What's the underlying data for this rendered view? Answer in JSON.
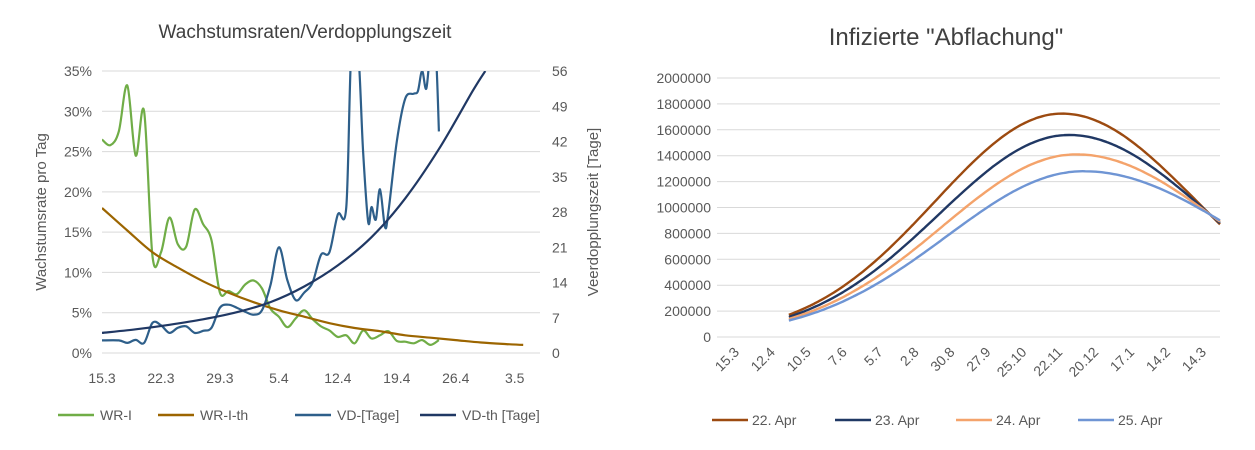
{
  "chart_data": [
    {
      "type": "line",
      "title": "Wachstumsraten/Verdopplungszeit",
      "ylabel": "Wachstumsrate pro Tag",
      "y2label": "Veerdopplungszeit [Tage]",
      "x_ticks": [
        "15.3",
        "22.3",
        "29.3",
        "5.4",
        "12.4",
        "19.4",
        "26.4",
        "3.5"
      ],
      "ylim": [
        0,
        0.35
      ],
      "y_ticks": [
        "0%",
        "5%",
        "10%",
        "15%",
        "20%",
        "25%",
        "30%",
        "35%"
      ],
      "y2lim": [
        0,
        56
      ],
      "y2_ticks": [
        "0",
        "7",
        "14",
        "21",
        "28",
        "35",
        "42",
        "49",
        "56"
      ],
      "grid": true,
      "legend_position": "bottom",
      "series": [
        {
          "name": "WR-I",
          "axis": "left",
          "color": "#70ad47",
          "points": [
            [
              0,
              0.265
            ],
            [
              1,
              0.258
            ],
            [
              2,
              0.275
            ],
            [
              3,
              0.332
            ],
            [
              4,
              0.245
            ],
            [
              5,
              0.3
            ],
            [
              6,
              0.12
            ],
            [
              7,
              0.125
            ],
            [
              8,
              0.168
            ],
            [
              9,
              0.135
            ],
            [
              10,
              0.132
            ],
            [
              11,
              0.178
            ],
            [
              12,
              0.16
            ],
            [
              13,
              0.14
            ],
            [
              14,
              0.075
            ],
            [
              15,
              0.077
            ],
            [
              16,
              0.073
            ],
            [
              17,
              0.085
            ],
            [
              18,
              0.09
            ],
            [
              19,
              0.08
            ],
            [
              20,
              0.055
            ],
            [
              21,
              0.045
            ],
            [
              22,
              0.032
            ],
            [
              23,
              0.043
            ],
            [
              24,
              0.053
            ],
            [
              25,
              0.042
            ],
            [
              26,
              0.033
            ],
            [
              27,
              0.028
            ],
            [
              28,
              0.02
            ],
            [
              29,
              0.022
            ],
            [
              30,
              0.012
            ],
            [
              31,
              0.028
            ],
            [
              32,
              0.018
            ],
            [
              33,
              0.022
            ],
            [
              34,
              0.027
            ],
            [
              35,
              0.015
            ],
            [
              36,
              0.014
            ],
            [
              37,
              0.012
            ],
            [
              38,
              0.016
            ],
            [
              39,
              0.01
            ],
            [
              40,
              0.016
            ]
          ]
        },
        {
          "name": "WR-I-th",
          "axis": "left",
          "color": "#9c6500",
          "points": [
            [
              0,
              0.18
            ],
            [
              3,
              0.152
            ],
            [
              6,
              0.125
            ],
            [
              9,
              0.106
            ],
            [
              12,
              0.089
            ],
            [
              15,
              0.075
            ],
            [
              18,
              0.063
            ],
            [
              21,
              0.053
            ],
            [
              24,
              0.045
            ],
            [
              27,
              0.037
            ],
            [
              30,
              0.031
            ],
            [
              33,
              0.027
            ],
            [
              36,
              0.022
            ],
            [
              39,
              0.019
            ],
            [
              42,
              0.016
            ],
            [
              45,
              0.013
            ],
            [
              48,
              0.011
            ],
            [
              50,
              0.01
            ]
          ]
        },
        {
          "name": "VD-[Tage]",
          "axis": "right",
          "color": "#2e5f8a",
          "points": [
            [
              0,
              2.5
            ],
            [
              2,
              2.5
            ],
            [
              3,
              2.0
            ],
            [
              4,
              2.6
            ],
            [
              5,
              2.0
            ],
            [
              6,
              6.0
            ],
            [
              7,
              5.5
            ],
            [
              8,
              4.0
            ],
            [
              9,
              5.0
            ],
            [
              10,
              5.3
            ],
            [
              11,
              4.0
            ],
            [
              12,
              4.4
            ],
            [
              13,
              5.0
            ],
            [
              14,
              9.0
            ],
            [
              15,
              9.6
            ],
            [
              16,
              9.0
            ],
            [
              17,
              8.2
            ],
            [
              18,
              7.6
            ],
            [
              19,
              8.5
            ],
            [
              20,
              13.5
            ],
            [
              21,
              21.0
            ],
            [
              22,
              14.5
            ],
            [
              23,
              10.5
            ],
            [
              24,
              12.0
            ],
            [
              25,
              14.0
            ],
            [
              26,
              19.5
            ],
            [
              27,
              20.0
            ],
            [
              28,
              27.5
            ],
            [
              29,
              29.0
            ],
            [
              29.6,
              60
            ],
            [
              30.4,
              60
            ],
            [
              31,
              40.0
            ],
            [
              31.6,
              26.0
            ],
            [
              32,
              29.0
            ],
            [
              32.5,
              26.5
            ],
            [
              33,
              32.5
            ],
            [
              33.6,
              25.0
            ],
            [
              34,
              28.0
            ],
            [
              35,
              42.0
            ],
            [
              36,
              50.5
            ],
            [
              37,
              51.5
            ],
            [
              37.5,
              52.0
            ],
            [
              38,
              56.0
            ],
            [
              38.5,
              52.5
            ],
            [
              39,
              60
            ],
            [
              39.6,
              60
            ],
            [
              40,
              44.0
            ]
          ]
        },
        {
          "name": "VD-th [Tage]",
          "axis": "right",
          "color": "#203864",
          "points": [
            [
              0,
              4.0
            ],
            [
              4,
              4.7
            ],
            [
              8,
              5.6
            ],
            [
              12,
              6.7
            ],
            [
              16,
              8.1
            ],
            [
              20,
              10.1
            ],
            [
              24,
              13.2
            ],
            [
              28,
              17.4
            ],
            [
              32,
              23.0
            ],
            [
              36,
              30.7
            ],
            [
              40,
              40.5
            ],
            [
              44,
              52.0
            ],
            [
              45.5,
              56.0
            ]
          ]
        }
      ]
    },
    {
      "type": "line",
      "title": "Infizierte \"Abflachung\"",
      "x_ticks": [
        "15.3",
        "12.4",
        "10.5",
        "7.6",
        "5.7",
        "2.8",
        "30.8",
        "27.9",
        "25.10",
        "22.11",
        "20.12",
        "17.1",
        "14.2",
        "14.3"
      ],
      "ylim": [
        0,
        2000000
      ],
      "y_ticks": [
        "0",
        "200000",
        "400000",
        "600000",
        "800000",
        "1000000",
        "1200000",
        "1400000",
        "1600000",
        "1800000",
        "2000000"
      ],
      "grid": true,
      "legend_position": "bottom",
      "series": [
        {
          "name": "22. Apr",
          "color": "#9c4a10",
          "start": 1.5,
          "start_value": 150000,
          "peak_x": 9.1,
          "peak_value": 1725000,
          "end": 13.5,
          "end_value": 870000
        },
        {
          "name": "23. Apr",
          "color": "#203864",
          "start": 1.5,
          "start_value": 150000,
          "peak_x": 9.3,
          "peak_value": 1560000,
          "end": 13.5,
          "end_value": 880000
        },
        {
          "name": "24. Apr",
          "color": "#f4a36b",
          "start": 1.5,
          "start_value": 150000,
          "peak_x": 9.5,
          "peak_value": 1410000,
          "end": 13.5,
          "end_value": 890000
        },
        {
          "name": "25. Apr",
          "color": "#6f95d4",
          "start": 1.5,
          "start_value": 150000,
          "peak_x": 9.7,
          "peak_value": 1280000,
          "end": 13.5,
          "end_value": 900000
        }
      ]
    }
  ]
}
